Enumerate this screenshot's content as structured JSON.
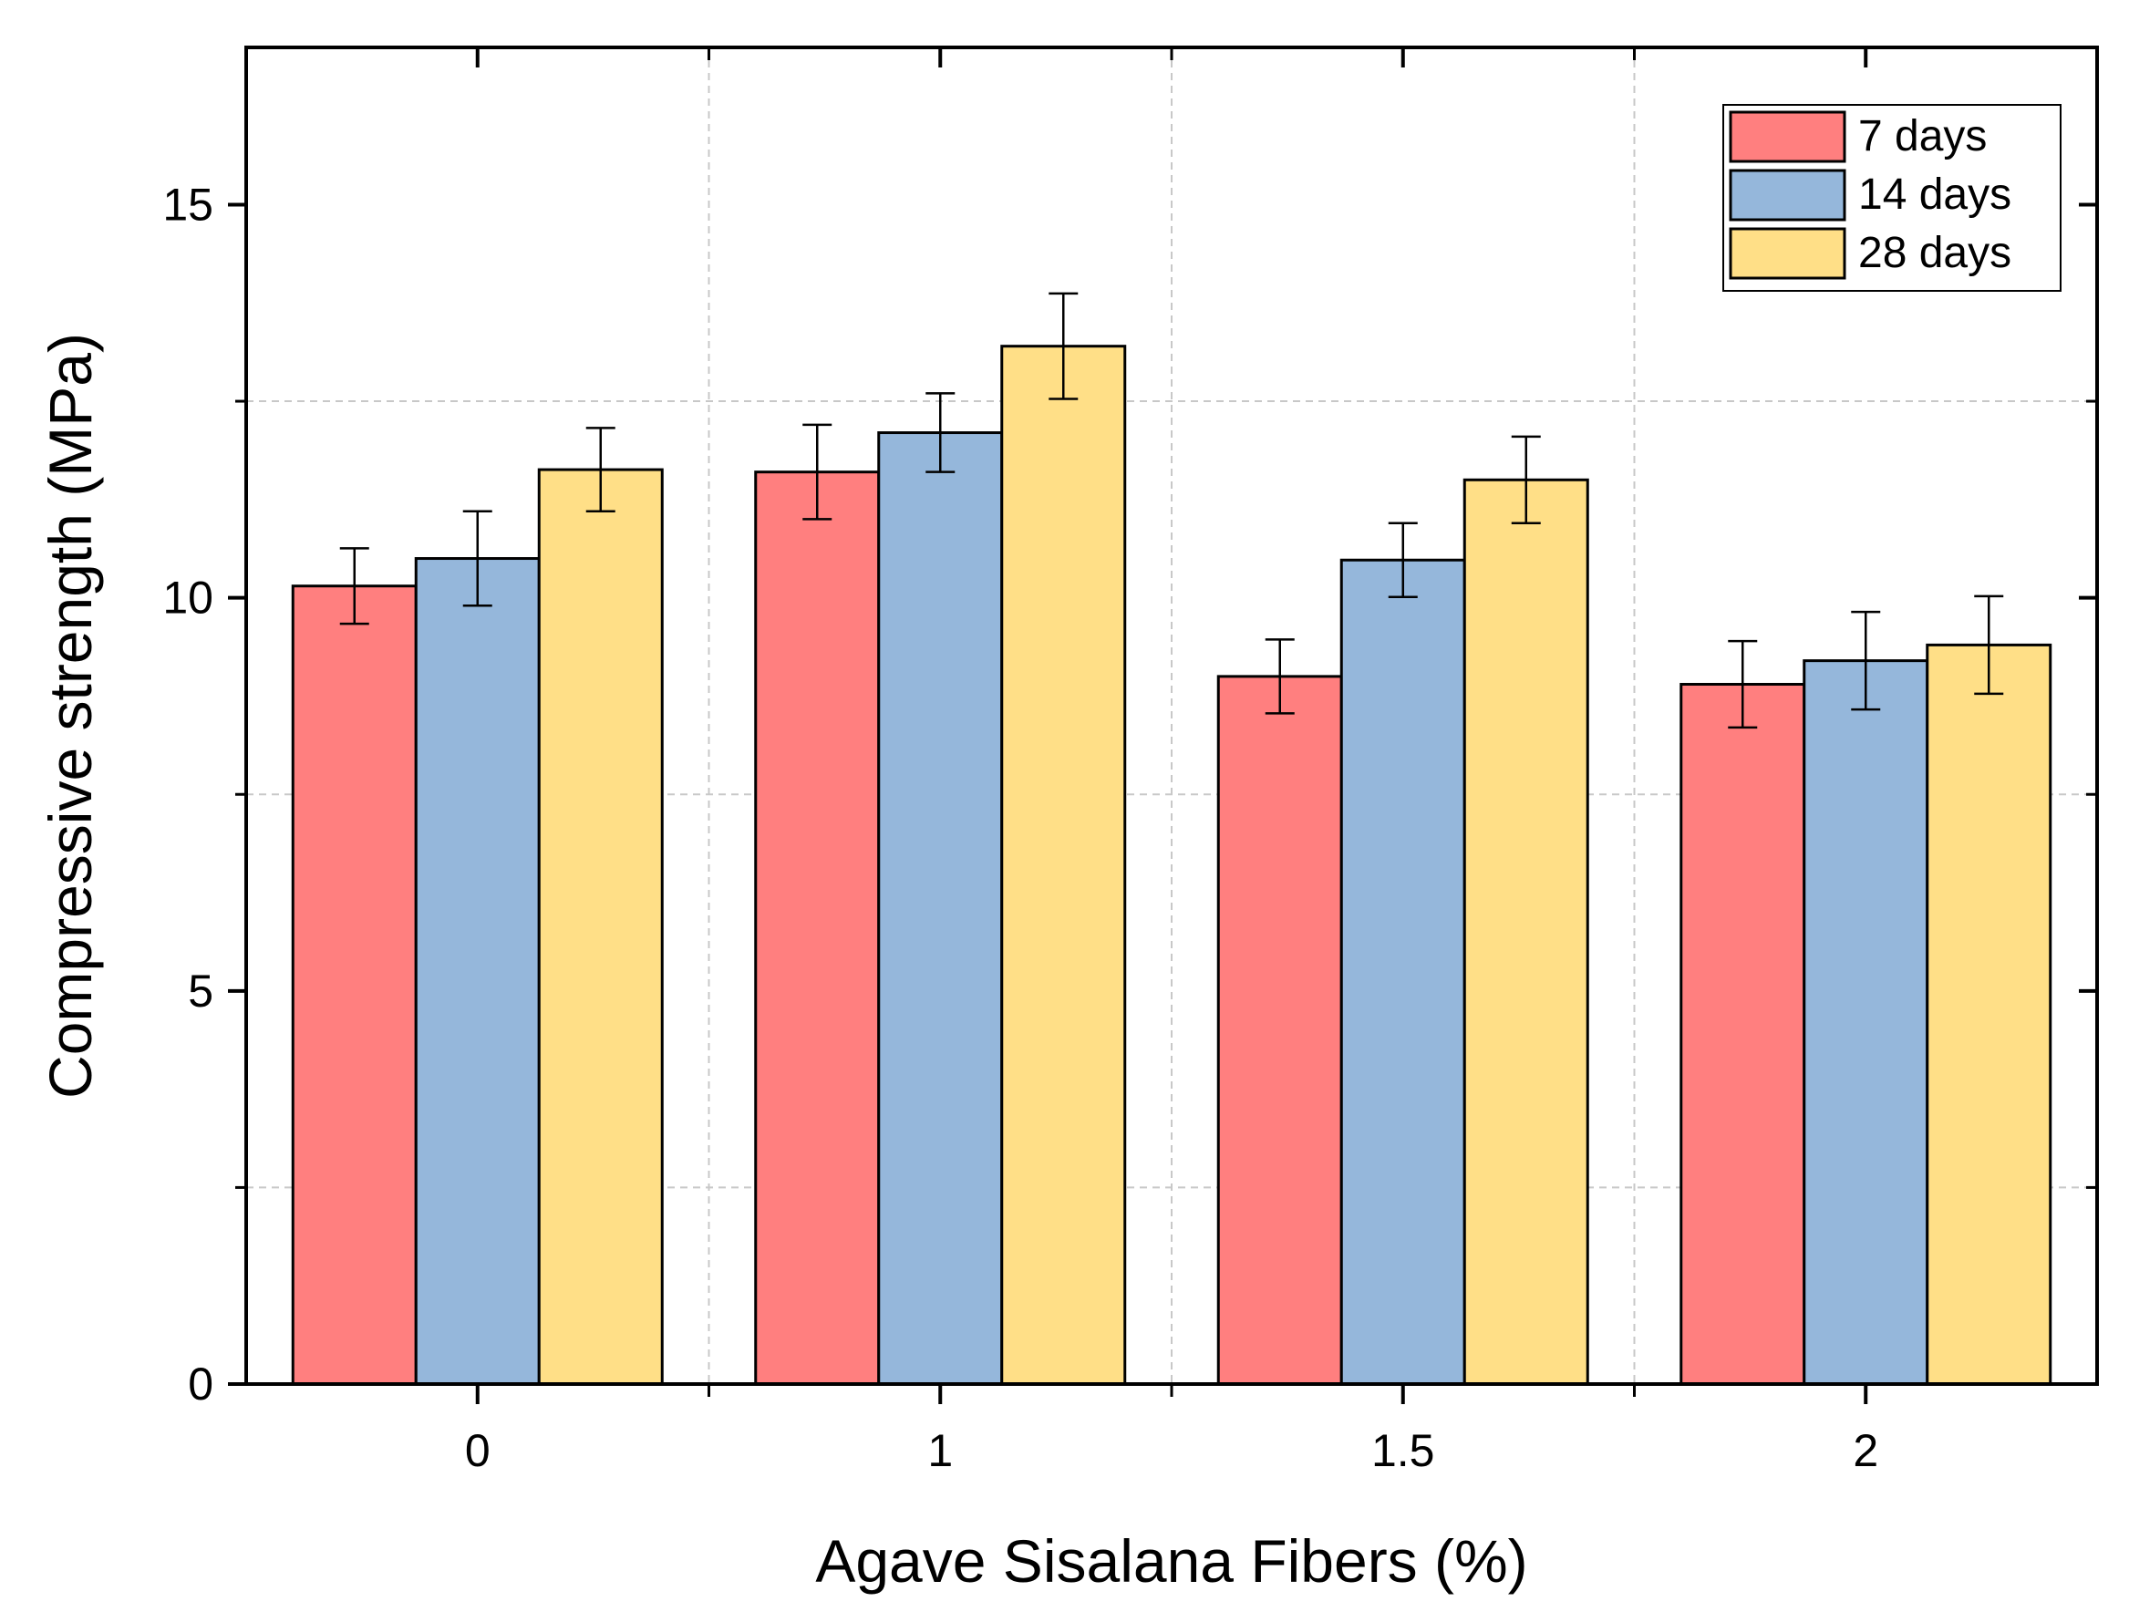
{
  "chart_data": {
    "type": "bar",
    "xlabel": "Agave Sisalana Fibers (%)",
    "ylabel": "Compressive strength (MPa)",
    "categories": [
      "0",
      "1",
      "1.5",
      "2"
    ],
    "ylim": [
      0,
      17
    ],
    "yticks": [
      "0",
      "5",
      "10",
      "15"
    ],
    "y_tick_values": [
      0,
      5,
      10,
      15
    ],
    "y_minor_tick_values": [
      2.5,
      7.5,
      12.5
    ],
    "grid": true,
    "legend_position": "top-right",
    "series": [
      {
        "name": "7 days",
        "color": "#FF7F7F",
        "values": [
          10.15,
          11.6,
          9.0,
          8.9
        ],
        "errors": [
          0.48,
          0.6,
          0.47,
          0.55
        ]
      },
      {
        "name": "14 days",
        "color": "#95B7DB",
        "values": [
          10.5,
          12.1,
          10.48,
          9.2
        ],
        "errors": [
          0.6,
          0.5,
          0.47,
          0.62
        ]
      },
      {
        "name": "28 days",
        "color": "#FFDF87",
        "values": [
          11.63,
          13.2,
          11.5,
          9.4
        ],
        "errors": [
          0.53,
          0.67,
          0.55,
          0.62
        ]
      }
    ]
  }
}
